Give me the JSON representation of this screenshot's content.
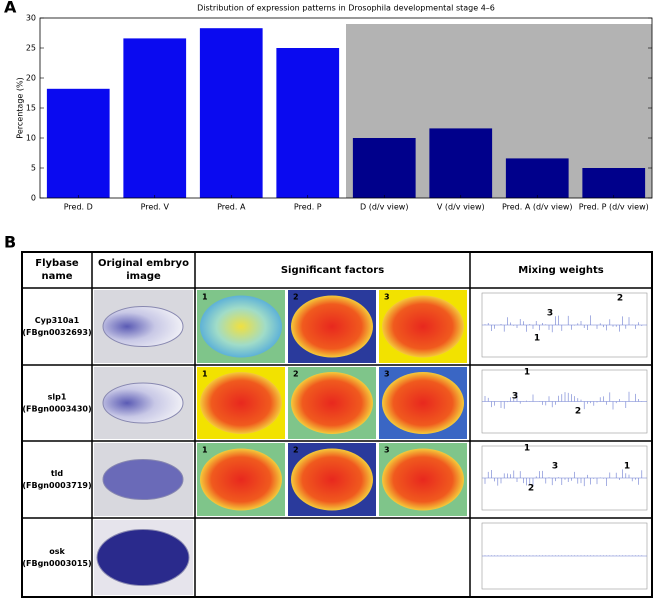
{
  "panel_a_label": "A",
  "chart_data": {
    "type": "bar",
    "title": "Distribution of expression patterns in Drosophila developmental stage 4–6",
    "y_label": "Percentage (%)",
    "categories": [
      "Pred. D",
      "Pred. V",
      "Pred. A",
      "Pred. P",
      "D (d/v view)",
      "V (d/v view)",
      "Pred. A (d/v view)",
      "Pred. P (d/v view)"
    ],
    "values": [
      18.2,
      26.6,
      28.3,
      25.0,
      10.0,
      11.6,
      6.6,
      5.0
    ],
    "colors": [
      "#0a0af0",
      "#0a0af0",
      "#0a0af0",
      "#0a0af0",
      "#00008b",
      "#00008b",
      "#00008b",
      "#00008b"
    ],
    "shaded_region": {
      "from": "D (d/v view)",
      "to": "Pred. P (d/v view)",
      "top": 29,
      "color": "#b3b3b3"
    },
    "ylim": [
      0,
      30
    ],
    "yticks": [
      0,
      5,
      10,
      15,
      20,
      25,
      30
    ],
    "grid": false
  },
  "panel_b_label": "B",
  "table": {
    "headers": [
      "Flybase name",
      "Original embryo image",
      "Significant factors",
      "Mixing weights"
    ],
    "rows": [
      {
        "name": "Cyp310a1",
        "id": "(FBgn0032693)",
        "factors": [
          "1",
          "2",
          "3"
        ],
        "weight_labels": [
          "2",
          "3",
          "1"
        ]
      },
      {
        "name": "slp1",
        "id": "(FBgn0003430)",
        "factors": [
          "1",
          "2",
          "3"
        ],
        "weight_labels": [
          "1",
          "3",
          "2"
        ]
      },
      {
        "name": "tld",
        "id": "(FBgn0003719)",
        "factors": [
          "1",
          "2",
          "3"
        ],
        "weight_labels": [
          "1",
          "3",
          "2",
          "1"
        ]
      },
      {
        "name": "osk",
        "id": "(FBgn0003015)",
        "factors": [],
        "weight_labels": []
      }
    ]
  }
}
